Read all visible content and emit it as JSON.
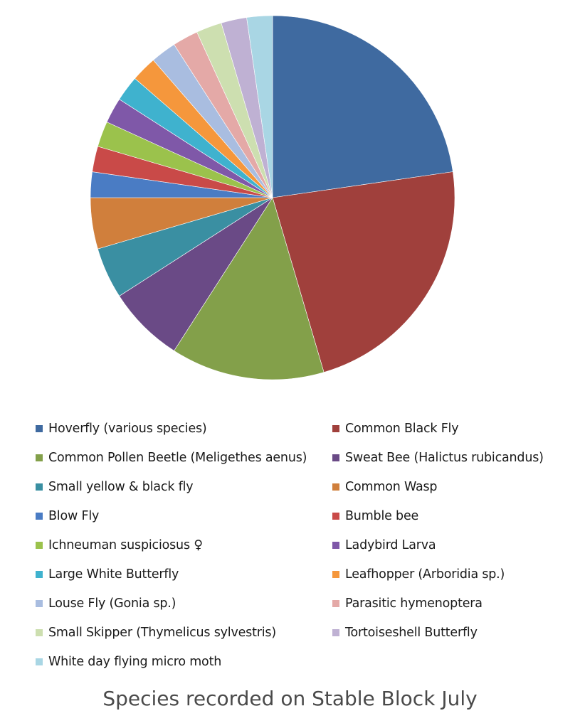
{
  "caption": "Species recorded on Stable Block July",
  "chart_data": {
    "type": "pie",
    "title": "Species recorded on Stable Block July",
    "legend_position": "bottom",
    "series": [
      {
        "name": "Hoverfly (various species)",
        "value": 20,
        "color": "#3f6aa0"
      },
      {
        "name": "Common Black Fly",
        "value": 20,
        "color": "#a0403c"
      },
      {
        "name": "Common Pollen Beetle (Meligethes aenus)",
        "value": 12,
        "color": "#83a04a"
      },
      {
        "name": "Sweat Bee (Halictus rubicandus)",
        "value": 6,
        "color": "#6a4a86"
      },
      {
        "name": "Small yellow & black fly",
        "value": 4,
        "color": "#3a8fa2"
      },
      {
        "name": "Common Wasp",
        "value": 4,
        "color": "#d07f3c"
      },
      {
        "name": "Blow Fly",
        "value": 2,
        "color": "#4a7cc4"
      },
      {
        "name": "Bumble bee",
        "value": 2,
        "color": "#c94a48"
      },
      {
        "name": "Ichneuman suspiciosus ♀",
        "value": 2,
        "color": "#9bc24c"
      },
      {
        "name": "Ladybird Larva",
        "value": 2,
        "color": "#7f58a8"
      },
      {
        "name": "Large White Butterfly",
        "value": 2,
        "color": "#3fb2ce"
      },
      {
        "name": "Leafhopper (Arboridia sp.)",
        "value": 2,
        "color": "#f5973c"
      },
      {
        "name": "Louse Fly (Gonia sp.)",
        "value": 2,
        "color": "#a9bde0"
      },
      {
        "name": "Parasitic hymenoptera",
        "value": 2,
        "color": "#e4a9a7"
      },
      {
        "name": "Small Skipper (Thymelicus sylvestris)",
        "value": 2,
        "color": "#cddfb0"
      },
      {
        "name": "Tortoiseshell Butterfly",
        "value": 2,
        "color": "#bfb1d3"
      },
      {
        "name": "White day flying micro moth",
        "value": 2,
        "color": "#a9d6e4"
      }
    ]
  }
}
